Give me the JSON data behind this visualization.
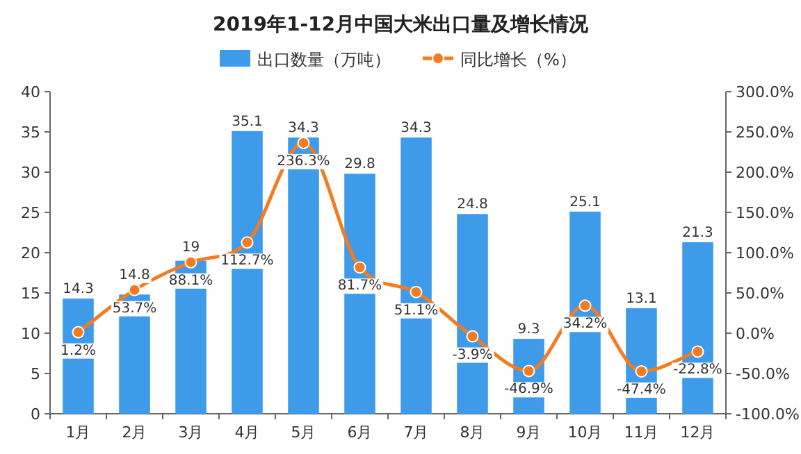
{
  "chart_data": {
    "type": "bar",
    "title": "2019年1-12月中国大米出口量及增长情况",
    "categories": [
      "1月",
      "2月",
      "3月",
      "4月",
      "5月",
      "6月",
      "7月",
      "8月",
      "9月",
      "10月",
      "11月",
      "12月"
    ],
    "series": [
      {
        "name": "出口数量（万吨）",
        "type": "bar",
        "color": "#3d9be9",
        "values": [
          14.3,
          14.8,
          19,
          35.1,
          34.3,
          29.8,
          34.3,
          24.8,
          9.3,
          25.1,
          13.1,
          21.3
        ],
        "value_labels": [
          "14.3",
          "14.8",
          "19",
          "35.1",
          "34.3",
          "29.8",
          "34.3",
          "24.8",
          "9.3",
          "25.1",
          "13.1",
          "21.3"
        ]
      },
      {
        "name": "同比增长（%）",
        "type": "line",
        "axis": "y2",
        "color": "#f47b20",
        "marker": "circle",
        "values": [
          1.2,
          53.7,
          88.1,
          112.7,
          236.3,
          81.7,
          51.1,
          -3.9,
          -46.9,
          34.2,
          -47.4,
          -22.8
        ],
        "value_labels": [
          "1.2%",
          "53.7%",
          "88.1%",
          "112.7%",
          "236.3%",
          "81.7%",
          "51.1%",
          "-3.9%",
          "-46.9%",
          "34.2%",
          "-47.4%",
          "-22.8%"
        ]
      }
    ],
    "ylim": [
      0,
      40
    ],
    "yticks": [
      0,
      5,
      10,
      15,
      20,
      25,
      30,
      35,
      40
    ],
    "y2lim": [
      -100,
      300
    ],
    "y2ticks": [
      {
        "value": -100,
        "label": "-100.0%"
      },
      {
        "value": -50,
        "label": "-50.0%"
      },
      {
        "value": 0,
        "label": "0.0%"
      },
      {
        "value": 50,
        "label": "50.0%"
      },
      {
        "value": 100,
        "label": "100.0%"
      },
      {
        "value": 150,
        "label": "150.0%"
      },
      {
        "value": 200,
        "label": "200.0%"
      },
      {
        "value": 250,
        "label": "250.0%"
      },
      {
        "value": 300,
        "label": "300.0%"
      }
    ],
    "legend": "top"
  }
}
